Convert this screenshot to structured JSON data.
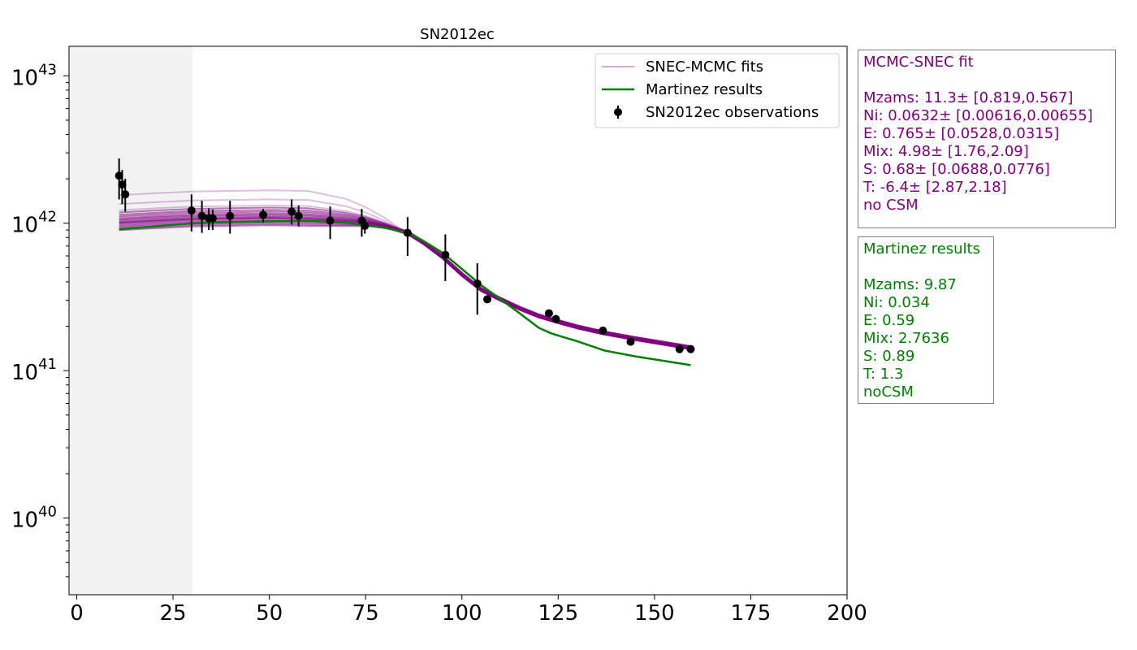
{
  "chart_data": {
    "type": "line",
    "title": "SN2012ec",
    "xlabel": "",
    "ylabel": "",
    "xlim": [
      -2,
      200
    ],
    "ylim_log10": [
      39.48,
      43.2
    ],
    "yscale": "log",
    "x_ticks": [
      0,
      25,
      50,
      75,
      100,
      125,
      150,
      175,
      200
    ],
    "x_tick_labels": [
      "0",
      "25",
      "50",
      "75",
      "100",
      "125",
      "150",
      "175",
      "200"
    ],
    "y_ticks_log10": [
      40,
      41,
      42,
      43
    ],
    "y_tick_labels": [
      {
        "base": "10",
        "exp": "40"
      },
      {
        "base": "10",
        "exp": "41"
      },
      {
        "base": "10",
        "exp": "42"
      },
      {
        "base": "10",
        "exp": "43"
      }
    ],
    "shaded_region": {
      "x": [
        -2,
        30
      ],
      "color": "#f2f2f2"
    },
    "legend": {
      "location": "upper right",
      "entries": [
        {
          "label": "SNEC-MCMC fits",
          "style": "line",
          "color": "#d9a7d9"
        },
        {
          "label": "Martinez results",
          "style": "line",
          "color": "#008000"
        },
        {
          "label": "SN2012ec observations",
          "style": "errorbar",
          "color": "#000000"
        }
      ]
    },
    "series": [
      {
        "name": "SN2012ec observations",
        "type": "errorbar",
        "color": "#000000",
        "points": [
          {
            "x": 11,
            "y": 2.1e+42,
            "lo": 1.45e+42,
            "hi": 2.75e+42
          },
          {
            "x": 11.8,
            "y": 1.83e+42,
            "lo": 1.35e+42,
            "hi": 2.3e+42
          },
          {
            "x": 12.6,
            "y": 1.57e+42,
            "lo": 1.2e+42,
            "hi": 2e+42
          },
          {
            "x": 29.8,
            "y": 1.22e+42,
            "lo": 8.8e+41,
            "hi": 1.57e+42
          },
          {
            "x": 32.5,
            "y": 1.12e+42,
            "lo": 8.6e+41,
            "hi": 1.42e+42
          },
          {
            "x": 34.3,
            "y": 1.08e+42,
            "lo": 9e+41,
            "hi": 1.26e+42
          },
          {
            "x": 35.3,
            "y": 1.08e+42,
            "lo": 9e+41,
            "hi": 1.24e+42
          },
          {
            "x": 39.8,
            "y": 1.12e+42,
            "lo": 8.5e+41,
            "hi": 1.42e+42
          },
          {
            "x": 48.4,
            "y": 1.14e+42,
            "lo": 1.01e+42,
            "hi": 1.25e+42
          },
          {
            "x": 55.8,
            "y": 1.2e+42,
            "lo": 9.8e+41,
            "hi": 1.45e+42
          },
          {
            "x": 57.6,
            "y": 1.12e+42,
            "lo": 9.5e+41,
            "hi": 1.32e+42
          },
          {
            "x": 65.8,
            "y": 1.04e+42,
            "lo": 7.8e+41,
            "hi": 1.3e+42
          },
          {
            "x": 74.0,
            "y": 1.04e+42,
            "lo": 8.1e+41,
            "hi": 1.25e+42
          },
          {
            "x": 74.8,
            "y": 9.6e+41,
            "lo": 8.5e+41,
            "hi": 1.07e+42
          },
          {
            "x": 85.9,
            "y": 8.6e+41,
            "lo": 6e+41,
            "hi": 1.1e+42
          },
          {
            "x": 95.7,
            "y": 6.1e+41,
            "lo": 4.05e+41,
            "hi": 8.4e+41
          },
          {
            "x": 104.0,
            "y": 3.9e+41,
            "lo": 2.4e+41,
            "hi": 5.35e+41
          },
          {
            "x": 106.6,
            "y": 3.05e+41,
            "lo": 2.98e+41,
            "hi": 3.12e+41
          },
          {
            "x": 122.6,
            "y": 2.45e+41,
            "lo": 2.4e+41,
            "hi": 2.5e+41
          },
          {
            "x": 124.4,
            "y": 2.24e+41,
            "lo": 2.19e+41,
            "hi": 2.29e+41
          },
          {
            "x": 136.6,
            "y": 1.87e+41,
            "lo": 1.83e+41,
            "hi": 1.91e+41
          },
          {
            "x": 143.8,
            "y": 1.57e+41,
            "lo": 1.54e+41,
            "hi": 1.6e+41
          },
          {
            "x": 156.5,
            "y": 1.4e+41,
            "lo": 1.37e+41,
            "hi": 1.43e+41
          },
          {
            "x": 159.4,
            "y": 1.4e+41,
            "lo": 1.37e+41,
            "hi": 1.43e+41
          }
        ]
      },
      {
        "name": "Martinez results",
        "type": "line",
        "color": "#008000",
        "x": [
          11,
          20,
          30,
          40,
          50,
          60,
          70,
          80,
          86,
          90,
          95,
          100,
          105,
          110,
          115,
          120,
          123,
          126,
          130,
          137,
          145,
          159.4
        ],
        "y": [
          9.1e+41,
          9.5e+41,
          1e+42,
          1.02e+42,
          1.03e+42,
          1.04e+42,
          1.01e+42,
          9.3e+41,
          8.6e+41,
          7.6e+41,
          6.3e+41,
          4.9e+41,
          3.8e+41,
          3.05e+41,
          2.45e+41,
          1.95e+41,
          1.8e+41,
          1.7e+41,
          1.58e+41,
          1.37e+41,
          1.25e+41,
          1.09e+41
        ]
      }
    ],
    "fit_curves": {
      "name": "SNEC-MCMC fits",
      "color": "#800080",
      "x": [
        11,
        20,
        30,
        40,
        50,
        60,
        70,
        75,
        80,
        86,
        90,
        95,
        100,
        105,
        110,
        115,
        120,
        125,
        130,
        137,
        145,
        159.4
      ],
      "reference_y": [
        1.02e+42,
        1.05e+42,
        1.08e+42,
        1.09e+42,
        1.1e+42,
        1.09e+42,
        1.05e+42,
        1.02e+42,
        9.6e+41,
        8.6e+41,
        7.4e+41,
        5.9e+41,
        4.5e+41,
        3.55e+41,
        3.05e+41,
        2.65e+41,
        2.35e+41,
        2.15e+41,
        1.98e+41,
        1.8e+41,
        1.65e+41,
        1.43e+41
      ],
      "early_scale_factors": [
        1.52,
        1.32,
        1.2,
        1.16,
        1.12,
        1.09,
        1.06,
        1.04,
        1.02,
        1.0,
        0.99,
        0.98,
        0.96,
        0.94,
        0.92,
        0.9,
        0.88
      ]
    }
  },
  "mcmc_box": {
    "color": "#800080",
    "lines": [
      "MCMC-SNEC fit",
      "",
      "Mzams: 11.3± [0.819,0.567]",
      "Ni: 0.0632± [0.00616,0.00655]",
      "E: 0.765± [0.0528,0.0315]",
      "Mix: 4.98± [1.76,2.09]",
      "S: 0.68± [0.0688,0.0776]",
      "T: -6.4± [2.87,2.18]",
      "no CSM"
    ]
  },
  "martinez_box": {
    "color": "#008000",
    "lines": [
      "Martinez results",
      "",
      "Mzams: 9.87",
      "Ni: 0.034",
      "E: 0.59",
      "Mix: 2.7636",
      "S: 0.89",
      "T: 1.3",
      "noCSM"
    ]
  }
}
